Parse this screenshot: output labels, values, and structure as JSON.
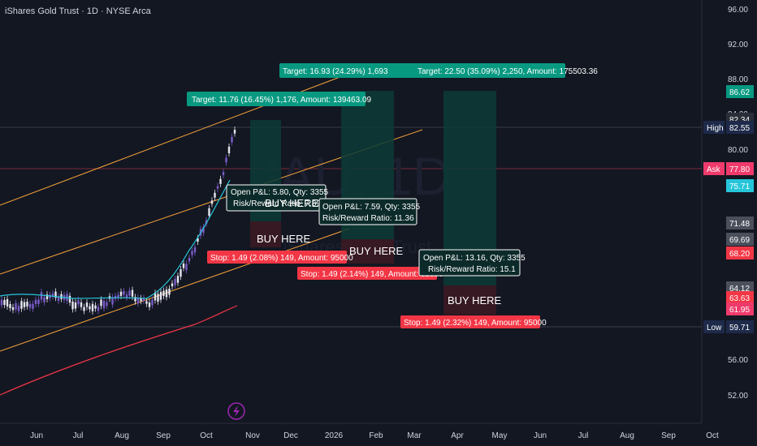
{
  "header": {
    "title": "iShares Gold Trust · 1D · NYSE Arca"
  },
  "watermark": {
    "symbol": "IAU, 1D",
    "name": "iShares Gold Trust"
  },
  "colors": {
    "background": "#131722",
    "green": "#089981",
    "red": "#f23645",
    "orange": "#f7a23b",
    "cyan": "#26c6da",
    "navy": "#1e2a4a",
    "pink": "#ef3a6b",
    "text": "#d1d4dc"
  },
  "price_axis": {
    "ticks": [
      "96.00",
      "92.00",
      "88.00",
      "84.00",
      "80.00",
      "56.00",
      "52.00"
    ],
    "tags": [
      {
        "label": "",
        "value": "86.62",
        "color": "#089981"
      },
      {
        "label": "",
        "value": "82.34",
        "color": "#2a2e39"
      },
      {
        "label": "High",
        "value": "82.55",
        "color": "#1e2a4a"
      },
      {
        "label": "Ask",
        "value": "77.80",
        "color": "#ef3a6b"
      },
      {
        "label": "",
        "value": "75.71",
        "color": "#26c6da"
      },
      {
        "label": "",
        "value": "71.48",
        "color": "#4a4f5c"
      },
      {
        "label": "",
        "value": "69.69",
        "color": "#4a4f5c"
      },
      {
        "label": "",
        "value": "68.20",
        "color": "#f23645"
      },
      {
        "label": "",
        "value": "64.12",
        "color": "#4a4f5c"
      },
      {
        "label": "",
        "value": "63.63",
        "color": "#f23645"
      },
      {
        "label": "",
        "value": "61.95",
        "color": "#ef3a6b"
      },
      {
        "label": "Low",
        "value": "59.71",
        "color": "#1e2a4a"
      }
    ]
  },
  "time_axis": {
    "labels": [
      "Jun",
      "Jul",
      "Aug",
      "Sep",
      "Oct",
      "Nov",
      "Dec",
      "2026",
      "Feb",
      "Mar",
      "Apr",
      "May",
      "Jun",
      "Jul",
      "Aug",
      "Sep",
      "Oct"
    ]
  },
  "positions": [
    {
      "target_label": "Target: 11.76 (16.45%) 1,176, Amount: 139463.09",
      "stop_label": "Stop: 1.49 (2.08%) 149, Amount: 95000",
      "pnl_label": "Open P&L: 5.80, Qty: 3355",
      "rr_label": "Risk/Reward Ratio: 7.89",
      "entry_label": "BUY HERE",
      "buy_text": "BUY HERE"
    },
    {
      "target_label": "Target: 16.93 (24.29%) 1,693",
      "stop_label": "Stop: 1.49 (2.14%) 149, Amount: 95000",
      "pnl_label": "Open P&L: 7.59, Qty: 3355",
      "rr_label": "Risk/Reward Ratio: 11.36",
      "entry_label": "BUY HERE"
    },
    {
      "target_label": "Target: 22.50 (35.09%) 2,250, Amount: 175503.36",
      "stop_label": "Stop: 1.49 (2.32%) 149, Amount: 95000",
      "pnl_label": "Open P&L: 13.16, Qty: 3355",
      "rr_label": "Risk/Reward Ratio: 15.1",
      "entry_label": "BUY HERE"
    }
  ],
  "bottom": {
    "icon": "lightning-icon"
  }
}
